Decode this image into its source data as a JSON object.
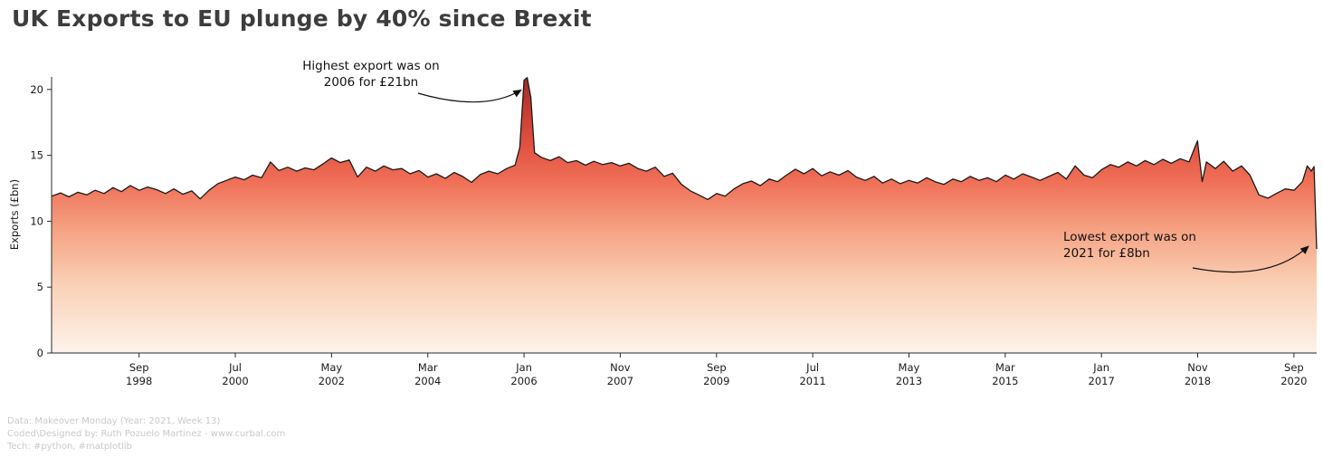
{
  "title": "UK Exports to EU plunge by 40% since Brexit",
  "footer": {
    "line1": "Data: Makeover Monday (Year: 2021, Week 13)",
    "line2": "Coded\\Designed by: Ruth Pozuelo Martinez - www.curbal.com",
    "line3": "Tech: #python, #matplotlib"
  },
  "colors": {
    "title_text": "#3d3d3d",
    "axis_text": "#1a1a1a",
    "footer_text": "#c9c9c9",
    "line": "#1a1a1a",
    "arrow": "#111111",
    "gradient_top": "#9e2b25",
    "gradient_bottom": "#fdf3eb"
  },
  "chart_data": {
    "type": "area",
    "title": "UK Exports to EU plunge by 40% since Brexit",
    "xlabel": "",
    "ylabel": "Exports (£bn)",
    "xlim": [
      1997.0,
      2021.1
    ],
    "ylim": [
      0,
      20.95
    ],
    "grid": false,
    "legend": "none",
    "yticks": [
      0,
      5,
      10,
      15,
      20
    ],
    "xticks": [
      {
        "month": "Sep",
        "year": "1998",
        "x": 1998.667
      },
      {
        "month": "Jul",
        "year": "2000",
        "x": 2000.5
      },
      {
        "month": "May",
        "year": "2002",
        "x": 2002.333
      },
      {
        "month": "Mar",
        "year": "2004",
        "x": 2004.167
      },
      {
        "month": "Jan",
        "year": "2006",
        "x": 2006.0
      },
      {
        "month": "Nov",
        "year": "2007",
        "x": 2007.833
      },
      {
        "month": "Sep",
        "year": "2009",
        "x": 2009.667
      },
      {
        "month": "Jul",
        "year": "2011",
        "x": 2011.5
      },
      {
        "month": "May",
        "year": "2013",
        "x": 2013.333
      },
      {
        "month": "Mar",
        "year": "2015",
        "x": 2015.167
      },
      {
        "month": "Jan",
        "year": "2017",
        "x": 2017.0
      },
      {
        "month": "Nov",
        "year": "2018",
        "x": 2018.833
      },
      {
        "month": "Sep",
        "year": "2020",
        "x": 2020.667
      }
    ],
    "fill_gradient": [
      {
        "offset": 0.0,
        "color": "#9e2b25"
      },
      {
        "offset": 0.1,
        "color": "#c13a2e"
      },
      {
        "offset": 0.25,
        "color": "#e25242"
      },
      {
        "offset": 0.38,
        "color": "#ef7057"
      },
      {
        "offset": 0.55,
        "color": "#f5a182"
      },
      {
        "offset": 0.75,
        "color": "#fad0b5"
      },
      {
        "offset": 1.0,
        "color": "#fdf3eb"
      }
    ],
    "line_color": "#1a1a1a",
    "annotations": [
      {
        "lines": [
          "Highest export was on",
          "2006 for £21bn"
        ],
        "xy": [
          2006.03,
          20.3
        ],
        "align": "center"
      },
      {
        "lines": [
          "Lowest export was on",
          "2021 for £8bn"
        ],
        "xy": [
          2021.08,
          8.3
        ],
        "align": "left"
      }
    ],
    "series": [
      {
        "name": "UK exports to EU (£bn)",
        "points": [
          [
            1997.0,
            11.9
          ],
          [
            1997.17,
            12.15
          ],
          [
            1997.33,
            11.85
          ],
          [
            1997.5,
            12.2
          ],
          [
            1997.67,
            12.0
          ],
          [
            1997.83,
            12.35
          ],
          [
            1998.0,
            12.1
          ],
          [
            1998.17,
            12.55
          ],
          [
            1998.33,
            12.25
          ],
          [
            1998.5,
            12.7
          ],
          [
            1998.67,
            12.35
          ],
          [
            1998.83,
            12.6
          ],
          [
            1999.0,
            12.4
          ],
          [
            1999.17,
            12.1
          ],
          [
            1999.33,
            12.45
          ],
          [
            1999.5,
            12.05
          ],
          [
            1999.67,
            12.3
          ],
          [
            1999.83,
            11.7
          ],
          [
            2000.0,
            12.35
          ],
          [
            2000.17,
            12.85
          ],
          [
            2000.33,
            13.1
          ],
          [
            2000.5,
            13.35
          ],
          [
            2000.67,
            13.15
          ],
          [
            2000.83,
            13.5
          ],
          [
            2001.0,
            13.3
          ],
          [
            2001.17,
            14.5
          ],
          [
            2001.33,
            13.85
          ],
          [
            2001.5,
            14.1
          ],
          [
            2001.67,
            13.8
          ],
          [
            2001.83,
            14.05
          ],
          [
            2002.0,
            13.9
          ],
          [
            2002.17,
            14.35
          ],
          [
            2002.33,
            14.8
          ],
          [
            2002.5,
            14.45
          ],
          [
            2002.67,
            14.65
          ],
          [
            2002.83,
            13.35
          ],
          [
            2003.0,
            14.1
          ],
          [
            2003.17,
            13.8
          ],
          [
            2003.33,
            14.2
          ],
          [
            2003.5,
            13.9
          ],
          [
            2003.67,
            14.0
          ],
          [
            2003.83,
            13.6
          ],
          [
            2004.0,
            13.85
          ],
          [
            2004.17,
            13.35
          ],
          [
            2004.33,
            13.6
          ],
          [
            2004.5,
            13.25
          ],
          [
            2004.67,
            13.7
          ],
          [
            2004.83,
            13.4
          ],
          [
            2005.0,
            12.95
          ],
          [
            2005.17,
            13.55
          ],
          [
            2005.33,
            13.8
          ],
          [
            2005.5,
            13.6
          ],
          [
            2005.67,
            14.0
          ],
          [
            2005.83,
            14.25
          ],
          [
            2005.92,
            15.6
          ],
          [
            2006.0,
            20.7
          ],
          [
            2006.06,
            20.9
          ],
          [
            2006.13,
            19.4
          ],
          [
            2006.2,
            15.2
          ],
          [
            2006.33,
            14.85
          ],
          [
            2006.5,
            14.6
          ],
          [
            2006.67,
            14.9
          ],
          [
            2006.83,
            14.45
          ],
          [
            2007.0,
            14.6
          ],
          [
            2007.17,
            14.25
          ],
          [
            2007.33,
            14.55
          ],
          [
            2007.5,
            14.3
          ],
          [
            2007.67,
            14.45
          ],
          [
            2007.83,
            14.2
          ],
          [
            2008.0,
            14.4
          ],
          [
            2008.17,
            14.0
          ],
          [
            2008.33,
            13.8
          ],
          [
            2008.5,
            14.1
          ],
          [
            2008.67,
            13.4
          ],
          [
            2008.83,
            13.65
          ],
          [
            2009.0,
            12.8
          ],
          [
            2009.17,
            12.3
          ],
          [
            2009.33,
            12.0
          ],
          [
            2009.5,
            11.65
          ],
          [
            2009.67,
            12.1
          ],
          [
            2009.83,
            11.9
          ],
          [
            2010.0,
            12.45
          ],
          [
            2010.17,
            12.85
          ],
          [
            2010.33,
            13.05
          ],
          [
            2010.5,
            12.7
          ],
          [
            2010.67,
            13.2
          ],
          [
            2010.83,
            13.0
          ],
          [
            2011.0,
            13.5
          ],
          [
            2011.17,
            13.95
          ],
          [
            2011.33,
            13.6
          ],
          [
            2011.5,
            14.0
          ],
          [
            2011.67,
            13.45
          ],
          [
            2011.83,
            13.75
          ],
          [
            2012.0,
            13.5
          ],
          [
            2012.17,
            13.85
          ],
          [
            2012.33,
            13.35
          ],
          [
            2012.5,
            13.1
          ],
          [
            2012.67,
            13.4
          ],
          [
            2012.83,
            12.9
          ],
          [
            2013.0,
            13.2
          ],
          [
            2013.17,
            12.85
          ],
          [
            2013.33,
            13.1
          ],
          [
            2013.5,
            12.9
          ],
          [
            2013.67,
            13.3
          ],
          [
            2013.83,
            13.0
          ],
          [
            2014.0,
            12.8
          ],
          [
            2014.17,
            13.2
          ],
          [
            2014.33,
            13.0
          ],
          [
            2014.5,
            13.4
          ],
          [
            2014.67,
            13.1
          ],
          [
            2014.83,
            13.3
          ],
          [
            2015.0,
            13.0
          ],
          [
            2015.17,
            13.5
          ],
          [
            2015.33,
            13.2
          ],
          [
            2015.5,
            13.6
          ],
          [
            2015.67,
            13.35
          ],
          [
            2015.83,
            13.1
          ],
          [
            2016.0,
            13.4
          ],
          [
            2016.17,
            13.7
          ],
          [
            2016.33,
            13.2
          ],
          [
            2016.5,
            14.2
          ],
          [
            2016.67,
            13.5
          ],
          [
            2016.83,
            13.3
          ],
          [
            2017.0,
            13.9
          ],
          [
            2017.17,
            14.3
          ],
          [
            2017.33,
            14.1
          ],
          [
            2017.5,
            14.5
          ],
          [
            2017.67,
            14.2
          ],
          [
            2017.83,
            14.6
          ],
          [
            2018.0,
            14.3
          ],
          [
            2018.17,
            14.7
          ],
          [
            2018.33,
            14.4
          ],
          [
            2018.5,
            14.75
          ],
          [
            2018.67,
            14.5
          ],
          [
            2018.83,
            16.1
          ],
          [
            2018.92,
            13.0
          ],
          [
            2019.0,
            14.5
          ],
          [
            2019.17,
            14.0
          ],
          [
            2019.33,
            14.55
          ],
          [
            2019.5,
            13.8
          ],
          [
            2019.67,
            14.2
          ],
          [
            2019.83,
            13.5
          ],
          [
            2020.0,
            12.0
          ],
          [
            2020.17,
            11.75
          ],
          [
            2020.33,
            12.1
          ],
          [
            2020.5,
            12.45
          ],
          [
            2020.67,
            12.35
          ],
          [
            2020.83,
            13.0
          ],
          [
            2020.92,
            14.2
          ],
          [
            2021.0,
            13.8
          ],
          [
            2021.05,
            14.15
          ],
          [
            2021.1,
            7.9
          ]
        ]
      }
    ]
  }
}
